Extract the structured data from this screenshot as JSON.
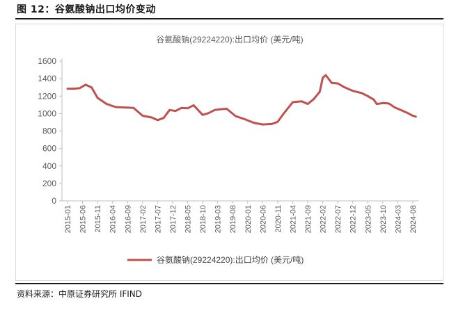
{
  "figure_title": "图 12：谷氨酸钠出口均价变动",
  "source_text": "资料来源：中原证券研究所  IFIND",
  "colors": {
    "series": "#C0504D",
    "axis": "#bfbfbf",
    "text": "#595959"
  },
  "chart_data": {
    "type": "line",
    "title": "谷氨酸钠(29224220):出口均价 (美元/吨)",
    "legend": {
      "position": "bottom",
      "entries": [
        "谷氨酸钠(29224220):出口均价 (美元/吨)"
      ]
    },
    "ylim": [
      0,
      1600
    ],
    "yticks": [
      0,
      200,
      400,
      600,
      800,
      1000,
      1200,
      1400,
      1600
    ],
    "grid": false,
    "xtick_labels": [
      "2015-01",
      "2015-06",
      "2015-11",
      "2016-04",
      "2016-09",
      "2017-02",
      "2017-07",
      "2017-12",
      "2018-05",
      "2018-10",
      "2019-03",
      "2019-08",
      "2020-01",
      "2020-06",
      "2020-11",
      "2021-04",
      "2021-09",
      "2022-02",
      "2022-07",
      "2022-12",
      "2023-05",
      "2023-10",
      "2024-03",
      "2024-08"
    ],
    "series": [
      {
        "name": "谷氨酸钠(29224220):出口均价 (美元/吨)",
        "color": "#C0504D",
        "points": [
          [
            "2015-01",
            1285
          ],
          [
            "2015-03",
            1285
          ],
          [
            "2015-05",
            1290
          ],
          [
            "2015-07",
            1330
          ],
          [
            "2015-09",
            1300
          ],
          [
            "2015-11",
            1180
          ],
          [
            "2016-02",
            1110
          ],
          [
            "2016-05",
            1075
          ],
          [
            "2016-08",
            1070
          ],
          [
            "2016-11",
            1065
          ],
          [
            "2017-02",
            975
          ],
          [
            "2017-05",
            955
          ],
          [
            "2017-07",
            925
          ],
          [
            "2017-09",
            950
          ],
          [
            "2017-11",
            1040
          ],
          [
            "2018-01",
            1030
          ],
          [
            "2018-03",
            1065
          ],
          [
            "2018-05",
            1060
          ],
          [
            "2018-07",
            1095
          ],
          [
            "2018-10",
            985
          ],
          [
            "2018-12",
            1005
          ],
          [
            "2019-02",
            1040
          ],
          [
            "2019-04",
            1050
          ],
          [
            "2019-06",
            1055
          ],
          [
            "2019-09",
            970
          ],
          [
            "2019-12",
            935
          ],
          [
            "2020-03",
            895
          ],
          [
            "2020-06",
            875
          ],
          [
            "2020-09",
            880
          ],
          [
            "2020-11",
            905
          ],
          [
            "2021-01",
            1000
          ],
          [
            "2021-04",
            1130
          ],
          [
            "2021-07",
            1140
          ],
          [
            "2021-09",
            1110
          ],
          [
            "2021-11",
            1165
          ],
          [
            "2022-01",
            1250
          ],
          [
            "2022-02",
            1410
          ],
          [
            "2022-03",
            1440
          ],
          [
            "2022-05",
            1350
          ],
          [
            "2022-07",
            1345
          ],
          [
            "2022-09",
            1305
          ],
          [
            "2022-12",
            1260
          ],
          [
            "2023-03",
            1235
          ],
          [
            "2023-05",
            1200
          ],
          [
            "2023-07",
            1160
          ],
          [
            "2023-08",
            1110
          ],
          [
            "2023-10",
            1120
          ],
          [
            "2023-12",
            1115
          ],
          [
            "2024-02",
            1070
          ],
          [
            "2024-04",
            1040
          ],
          [
            "2024-06",
            1010
          ],
          [
            "2024-08",
            975
          ],
          [
            "2024-09",
            965
          ]
        ]
      }
    ]
  }
}
